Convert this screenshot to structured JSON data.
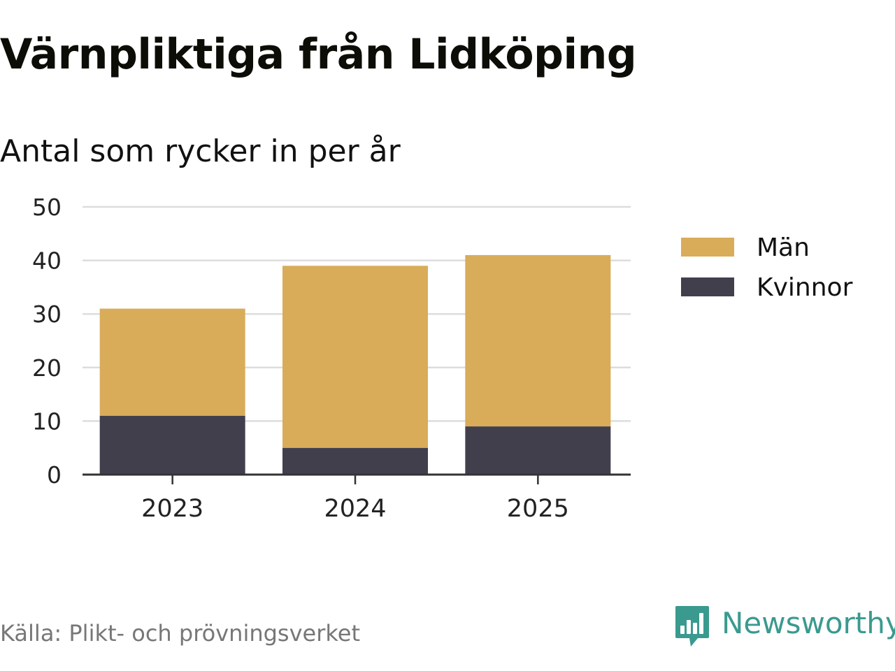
{
  "title": "Värnpliktiga från Lidköping",
  "subtitle": "Antal som rycker in per år",
  "source": "Källa: Plikt- och prövningsverket",
  "brand": "Newsworthy",
  "colors": {
    "man": "#d9ac59",
    "kvinnor": "#423f4d",
    "grid": "#dddddd",
    "axis": "#333333",
    "brand": "#3a9a8f"
  },
  "chart_data": {
    "type": "bar",
    "stacked": true,
    "categories": [
      "2023",
      "2024",
      "2025"
    ],
    "series": [
      {
        "name": "Kvinnor",
        "values": [
          11,
          5,
          9
        ],
        "color": "#423f4d"
      },
      {
        "name": "Män",
        "values": [
          20,
          34,
          32
        ],
        "color": "#d9ac59"
      }
    ],
    "legend": [
      {
        "name": "Män",
        "color": "#d9ac59"
      },
      {
        "name": "Kvinnor",
        "color": "#423f4d"
      }
    ],
    "legend_position": "right",
    "ylim": [
      0,
      50
    ],
    "yticks": [
      "0",
      "10",
      "20",
      "30",
      "40",
      "50"
    ],
    "grid": true,
    "title": "Värnpliktiga från Lidköping",
    "ylabel": "",
    "xlabel": ""
  }
}
